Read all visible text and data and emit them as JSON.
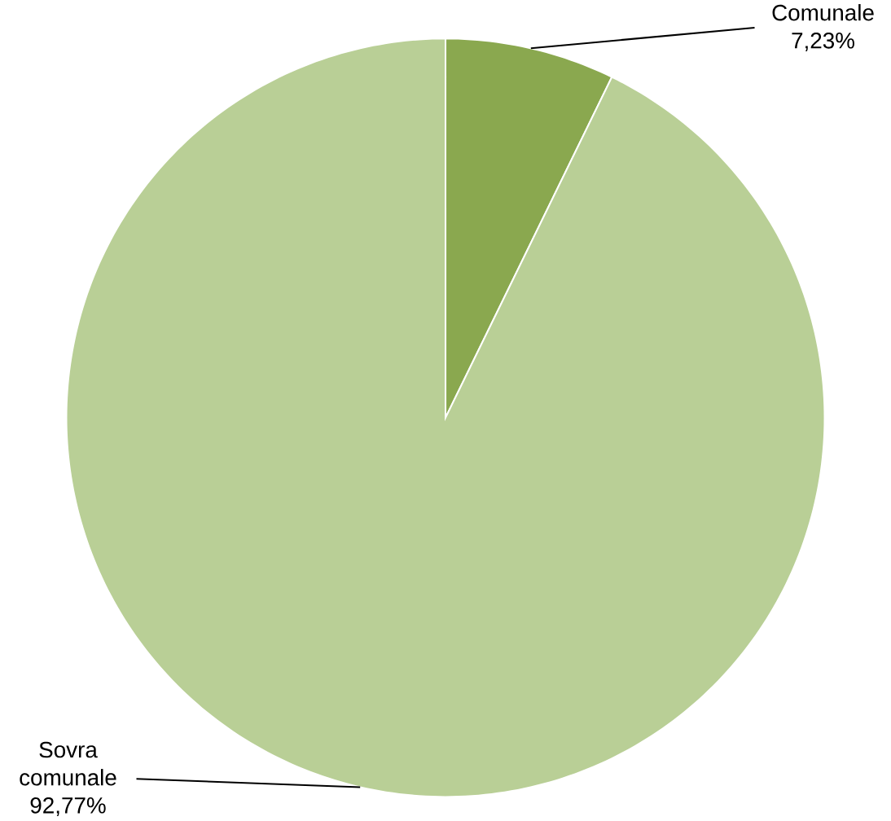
{
  "chart_data": {
    "type": "pie",
    "categories": [
      "Comunale",
      "Sovra comunale"
    ],
    "values": [
      7.23,
      92.77
    ],
    "colors": [
      "#8aa84f",
      "#b9cf96"
    ],
    "value_labels": [
      "7,23%",
      "92,77%"
    ]
  }
}
